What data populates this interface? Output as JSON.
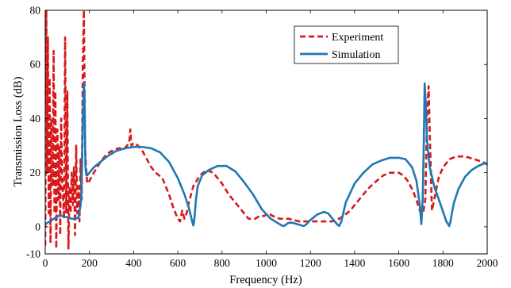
{
  "chart_data": {
    "type": "line",
    "title": "",
    "xlabel": "Frequency (Hz)",
    "ylabel": "Transmission Loss (dB)",
    "xlim": [
      0,
      2000
    ],
    "ylim": [
      -10,
      80
    ],
    "xticks": [
      0,
      200,
      400,
      600,
      800,
      1000,
      1200,
      1400,
      1600,
      1800,
      2000
    ],
    "yticks": [
      -10,
      0,
      20,
      40,
      60,
      80
    ],
    "xtick_labels": [
      "0",
      "200",
      "400",
      "600",
      "800",
      "1000",
      "1200",
      "1400",
      "1600",
      "1800",
      "2000"
    ],
    "ytick_labels": [
      "-10",
      "0",
      "20",
      "40",
      "60",
      "80"
    ],
    "grid": false,
    "legend": {
      "position": "top-right",
      "entries": [
        "Experiment",
        "Simulation"
      ]
    },
    "series": [
      {
        "name": "Experiment",
        "color": "#d7191c",
        "style": "dashed",
        "x": [
          0,
          5,
          8,
          12,
          16,
          20,
          24,
          28,
          33,
          38,
          42,
          46,
          50,
          55,
          60,
          64,
          68,
          72,
          76,
          80,
          85,
          90,
          95,
          100,
          105,
          110,
          115,
          120,
          125,
          130,
          135,
          140,
          145,
          150,
          155,
          160,
          165,
          170,
          175,
          180,
          185,
          190,
          200,
          220,
          250,
          280,
          300,
          330,
          360,
          380,
          385,
          390,
          400,
          420,
          440,
          460,
          480,
          500,
          530,
          560,
          580,
          600,
          610,
          620,
          630,
          640,
          650,
          670,
          700,
          730,
          760,
          780,
          790,
          800,
          830,
          860,
          890,
          920,
          950,
          970,
          990,
          1010,
          1030,
          1060,
          1100,
          1150,
          1200,
          1250,
          1280,
          1300,
          1330,
          1350,
          1380,
          1420,
          1460,
          1500,
          1530,
          1560,
          1600,
          1620,
          1640,
          1660,
          1680,
          1690,
          1700,
          1710,
          1720,
          1725,
          1730,
          1735,
          1740,
          1750,
          1760,
          1780,
          1800,
          1830,
          1860,
          1900,
          1940,
          1980,
          2000
        ],
        "y": [
          -7,
          80,
          20,
          70,
          5,
          55,
          -6,
          40,
          15,
          65,
          5,
          50,
          -8,
          36,
          10,
          30,
          -3,
          40,
          18,
          12,
          3,
          70,
          5,
          50,
          -8,
          15,
          5,
          20,
          8,
          22,
          -3,
          30,
          5,
          15,
          2,
          25,
          10,
          60,
          80,
          30,
          22,
          16,
          17,
          20,
          24,
          27,
          28,
          29,
          29,
          31,
          36,
          30,
          31,
          30,
          28,
          25,
          22,
          20,
          18,
          12,
          7,
          3,
          2,
          6,
          3,
          5,
          9,
          15,
          19,
          21,
          20,
          18,
          17,
          16,
          12,
          9,
          6,
          3,
          3,
          4,
          4,
          5,
          4,
          3,
          3,
          2,
          2,
          2,
          2,
          2,
          3,
          4,
          6,
          10,
          14,
          17,
          19,
          20,
          20,
          19,
          17,
          14,
          10,
          7,
          5,
          5,
          10,
          30,
          45,
          52,
          35,
          6,
          10,
          18,
          22,
          25,
          26,
          26,
          25,
          24,
          23
        ]
      },
      {
        "name": "Simulation",
        "color": "#1f77b4",
        "style": "solid",
        "x": [
          0,
          20,
          40,
          60,
          80,
          100,
          120,
          140,
          150,
          160,
          165,
          170,
          175,
          178,
          182,
          186,
          190,
          200,
          220,
          250,
          280,
          320,
          360,
          400,
          440,
          480,
          520,
          560,
          600,
          630,
          650,
          665,
          670,
          674,
          678,
          682,
          690,
          710,
          740,
          780,
          820,
          860,
          900,
          940,
          980,
          1020,
          1050,
          1070,
          1080,
          1090,
          1100,
          1120,
          1140,
          1160,
          1170,
          1180,
          1200,
          1230,
          1260,
          1280,
          1300,
          1320,
          1330,
          1340,
          1360,
          1400,
          1440,
          1480,
          1520,
          1560,
          1600,
          1630,
          1660,
          1680,
          1695,
          1702,
          1708,
          1713,
          1717,
          1722,
          1727,
          1732,
          1740,
          1760,
          1790,
          1815,
          1828,
          1834,
          1840,
          1850,
          1870,
          1900,
          1930,
          1960,
          1990,
          2000
        ],
        "y": [
          1,
          2,
          3,
          4,
          4,
          3.5,
          3,
          3,
          3.5,
          8,
          15,
          40,
          53,
          48,
          22,
          19,
          19,
          20,
          22,
          24,
          26,
          28,
          29,
          29.5,
          29.5,
          29,
          27.5,
          24,
          18,
          12,
          7,
          2,
          0.5,
          2,
          6,
          10,
          15,
          19,
          21,
          22.5,
          22.5,
          20.5,
          16.5,
          12,
          6.5,
          3,
          1.5,
          0.5,
          0.3,
          0.8,
          1.5,
          1.5,
          1,
          0.5,
          0.3,
          0.8,
          2.5,
          4.5,
          5.5,
          5,
          3,
          1,
          0.3,
          2,
          9,
          16,
          20,
          23,
          24.5,
          25.5,
          25.5,
          25,
          22,
          17,
          8,
          1,
          10,
          30,
          53,
          46,
          33,
          28,
          22,
          15,
          8,
          2,
          0.3,
          2,
          5,
          9,
          14,
          18.5,
          21,
          22.5,
          23.5,
          23.5
        ]
      }
    ]
  }
}
